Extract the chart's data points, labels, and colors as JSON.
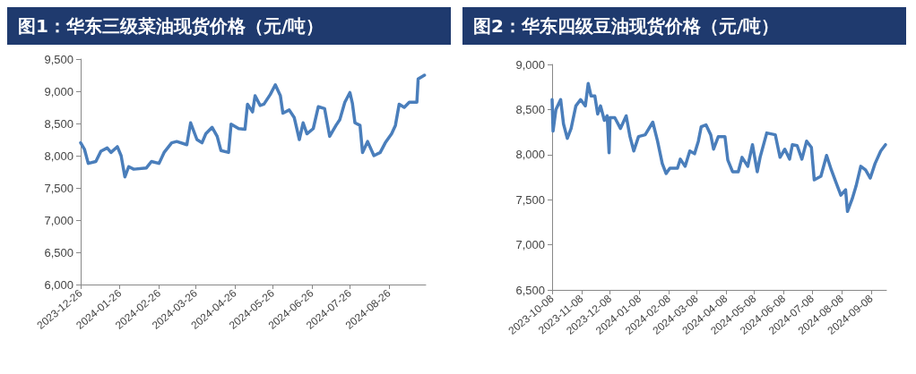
{
  "chart_data": [
    {
      "type": "line",
      "title": "图1：华东三级菜油现货价格（元/吨）",
      "color": "#4a7ebb",
      "x": [
        "2023-12-26",
        "2023-12-29",
        "2024-01-01",
        "2024-01-07",
        "2024-01-11",
        "2024-01-16",
        "2024-01-19",
        "2024-01-24",
        "2024-01-27",
        "2024-01-30",
        "2024-02-02",
        "2024-02-06",
        "2024-02-16",
        "2024-02-20",
        "2024-02-26",
        "2024-03-01",
        "2024-03-07",
        "2024-03-11",
        "2024-03-19",
        "2024-03-22",
        "2024-03-27",
        "2024-03-31",
        "2024-04-03",
        "2024-04-08",
        "2024-04-12",
        "2024-04-15",
        "2024-04-21",
        "2024-04-23",
        "2024-04-29",
        "2024-05-04",
        "2024-05-06",
        "2024-05-10",
        "2024-05-12",
        "2024-05-16",
        "2024-05-19",
        "2024-05-24",
        "2024-05-28",
        "2024-06-01",
        "2024-06-03",
        "2024-06-08",
        "2024-06-12",
        "2024-06-16",
        "2024-06-19",
        "2024-06-22",
        "2024-06-27",
        "2024-07-01",
        "2024-07-06",
        "2024-07-10",
        "2024-07-15",
        "2024-07-18",
        "2024-07-22",
        "2024-07-26",
        "2024-07-28",
        "2024-07-30",
        "2024-08-03",
        "2024-08-05",
        "2024-08-09",
        "2024-08-14",
        "2024-08-19",
        "2024-08-23",
        "2024-08-28",
        "2024-08-31",
        "2024-09-03",
        "2024-09-07",
        "2024-09-11",
        "2024-09-17",
        "2024-09-18",
        "2024-09-23"
      ],
      "values": [
        8200,
        8100,
        7880,
        7910,
        8070,
        8120,
        8050,
        8140,
        8000,
        7670,
        7830,
        7790,
        7810,
        7910,
        7880,
        8050,
        8200,
        8220,
        8170,
        8510,
        8250,
        8200,
        8340,
        8440,
        8300,
        8080,
        8050,
        8490,
        8420,
        8410,
        8800,
        8680,
        8930,
        8780,
        8800,
        8950,
        9100,
        8930,
        8660,
        8710,
        8590,
        8250,
        8510,
        8340,
        8420,
        8760,
        8730,
        8300,
        8470,
        8560,
        8830,
        8980,
        8810,
        8510,
        8470,
        8050,
        8220,
        8000,
        8050,
        8200,
        8340,
        8470,
        8800,
        8750,
        8830,
        8830,
        9190,
        9250
      ],
      "xlim": [
        "2023-12-26",
        "2024-09-24"
      ],
      "xticks": [
        "2023-12-26",
        "2024-01-26",
        "2024-02-26",
        "2024-03-26",
        "2024-04-26",
        "2024-05-26",
        "2024-06-26",
        "2024-07-26",
        "2024-08-26"
      ],
      "ylim": [
        6000,
        9500
      ],
      "yticks": [
        {
          "value": 6000,
          "label": "6,000"
        },
        {
          "value": 6500,
          "label": "6,500"
        },
        {
          "value": 7000,
          "label": "7,000"
        },
        {
          "value": 7500,
          "label": "7,500"
        },
        {
          "value": 8000,
          "label": "8,000"
        },
        {
          "value": 8500,
          "label": "8,500"
        },
        {
          "value": 9000,
          "label": "9,000"
        },
        {
          "value": 9500,
          "label": "9,500"
        }
      ],
      "grid": false
    },
    {
      "type": "line",
      "title": "图2：华东四级豆油现货价格（元/吨）",
      "color": "#4a7ebb",
      "x": [
        "2023-10-08",
        "2023-10-09",
        "2023-10-12",
        "2023-10-17",
        "2023-10-20",
        "2023-10-24",
        "2023-10-28",
        "2023-11-02",
        "2023-11-07",
        "2023-11-12",
        "2023-11-15",
        "2023-11-18",
        "2023-11-22",
        "2023-11-25",
        "2023-11-28",
        "2023-12-02",
        "2023-12-05",
        "2023-12-07",
        "2023-12-08",
        "2023-12-13",
        "2023-12-19",
        "2023-12-25",
        "2023-12-29",
        "2024-01-02",
        "2024-01-07",
        "2024-01-14",
        "2024-01-22",
        "2024-01-27",
        "2024-02-01",
        "2024-02-05",
        "2024-02-09",
        "2024-02-17",
        "2024-02-20",
        "2024-02-25",
        "2024-03-01",
        "2024-03-06",
        "2024-03-10",
        "2024-03-13",
        "2024-03-18",
        "2024-03-23",
        "2024-03-26",
        "2024-03-31",
        "2024-04-07",
        "2024-04-10",
        "2024-04-15",
        "2024-04-21",
        "2024-04-25",
        "2024-05-01",
        "2024-05-06",
        "2024-05-11",
        "2024-05-14",
        "2024-05-21",
        "2024-05-30",
        "2024-06-04",
        "2024-06-09",
        "2024-06-14",
        "2024-06-17",
        "2024-06-22",
        "2024-06-27",
        "2024-07-02",
        "2024-07-07",
        "2024-07-10",
        "2024-07-17",
        "2024-07-23",
        "2024-07-28",
        "2024-08-02",
        "2024-08-07",
        "2024-08-12",
        "2024-08-14",
        "2024-08-19",
        "2024-08-23",
        "2024-08-28",
        "2024-09-02",
        "2024-09-07",
        "2024-09-12",
        "2024-09-18",
        "2024-09-23"
      ],
      "values": [
        8610,
        8260,
        8500,
        8610,
        8340,
        8180,
        8290,
        8540,
        8610,
        8540,
        8790,
        8650,
        8650,
        8450,
        8540,
        8380,
        8430,
        8020,
        8410,
        8410,
        8290,
        8430,
        8200,
        8040,
        8200,
        8220,
        8360,
        8150,
        7900,
        7790,
        7850,
        7850,
        7950,
        7870,
        8040,
        8010,
        8150,
        8310,
        8330,
        8220,
        8060,
        8200,
        8200,
        7940,
        7810,
        7810,
        7970,
        7870,
        8110,
        7810,
        7970,
        8240,
        8220,
        7970,
        8060,
        7950,
        8110,
        8100,
        7950,
        8150,
        8080,
        7720,
        7760,
        7990,
        7830,
        7690,
        7550,
        7610,
        7370,
        7510,
        7650,
        7870,
        7830,
        7740,
        7900,
        8040,
        8110
      ],
      "xlim": [
        "2023-10-08",
        "2024-09-24"
      ],
      "xticks": [
        "2023-10-08",
        "2023-11-08",
        "2023-12-08",
        "2024-01-08",
        "2024-02-08",
        "2024-03-08",
        "2024-04-08",
        "2024-05-08",
        "2024-06-08",
        "2024-07-08",
        "2024-08-08",
        "2024-09-08"
      ],
      "ylim": [
        6500,
        9000
      ],
      "yticks": [
        {
          "value": 6500,
          "label": "6,500"
        },
        {
          "value": 7000,
          "label": "7,000"
        },
        {
          "value": 7500,
          "label": "7,500"
        },
        {
          "value": 8000,
          "label": "8,000"
        },
        {
          "value": 8500,
          "label": "8,500"
        },
        {
          "value": 9000,
          "label": "9,000"
        }
      ],
      "grid": false
    }
  ]
}
